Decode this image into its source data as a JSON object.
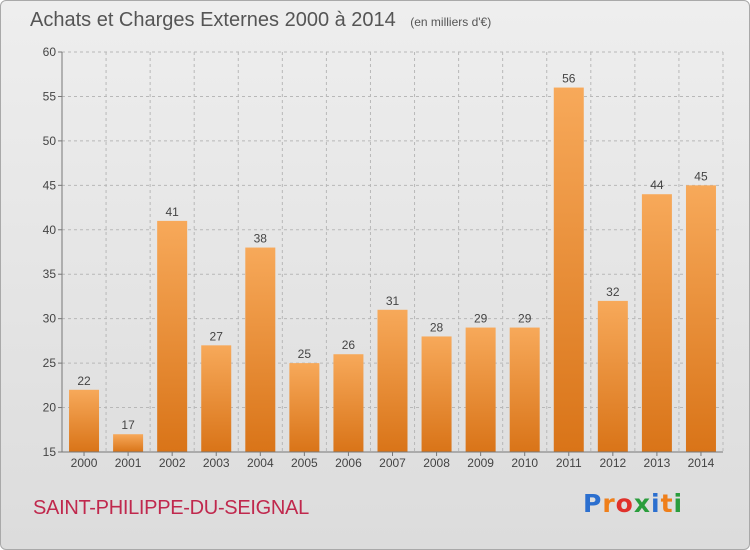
{
  "title": "Achats et Charges Externes 2000 à 2014",
  "unit": "(en milliers d'€)",
  "commune": "SAINT-PHILIPPE-DU-SEIGNAL",
  "brand": {
    "text": "Proxiti",
    "letter_colors": [
      "#2b6fcf",
      "#ef7f1a",
      "#e0312b",
      "#2a9d3c",
      "#2b6fcf",
      "#ef7f1a",
      "#2a9d3c"
    ]
  },
  "colors": {
    "bar_top": "#f7a95a",
    "bar_bottom": "#d97418",
    "grid": "#b8b8b8",
    "title": "#555555",
    "commune": "#c0284d"
  },
  "chart_data": {
    "type": "bar",
    "categories": [
      "2000",
      "2001",
      "2002",
      "2003",
      "2004",
      "2005",
      "2006",
      "2007",
      "2008",
      "2009",
      "2010",
      "2011",
      "2012",
      "2013",
      "2014"
    ],
    "values": [
      22,
      17,
      41,
      27,
      38,
      25,
      26,
      31,
      28,
      29,
      29,
      56,
      32,
      44,
      45
    ],
    "ylim": [
      15,
      60
    ],
    "yticks": [
      15,
      20,
      25,
      30,
      35,
      40,
      45,
      50,
      55,
      60
    ],
    "grid": true,
    "title": "Achats et Charges Externes 2000 à 2014",
    "xlabel": "",
    "ylabel": ""
  }
}
